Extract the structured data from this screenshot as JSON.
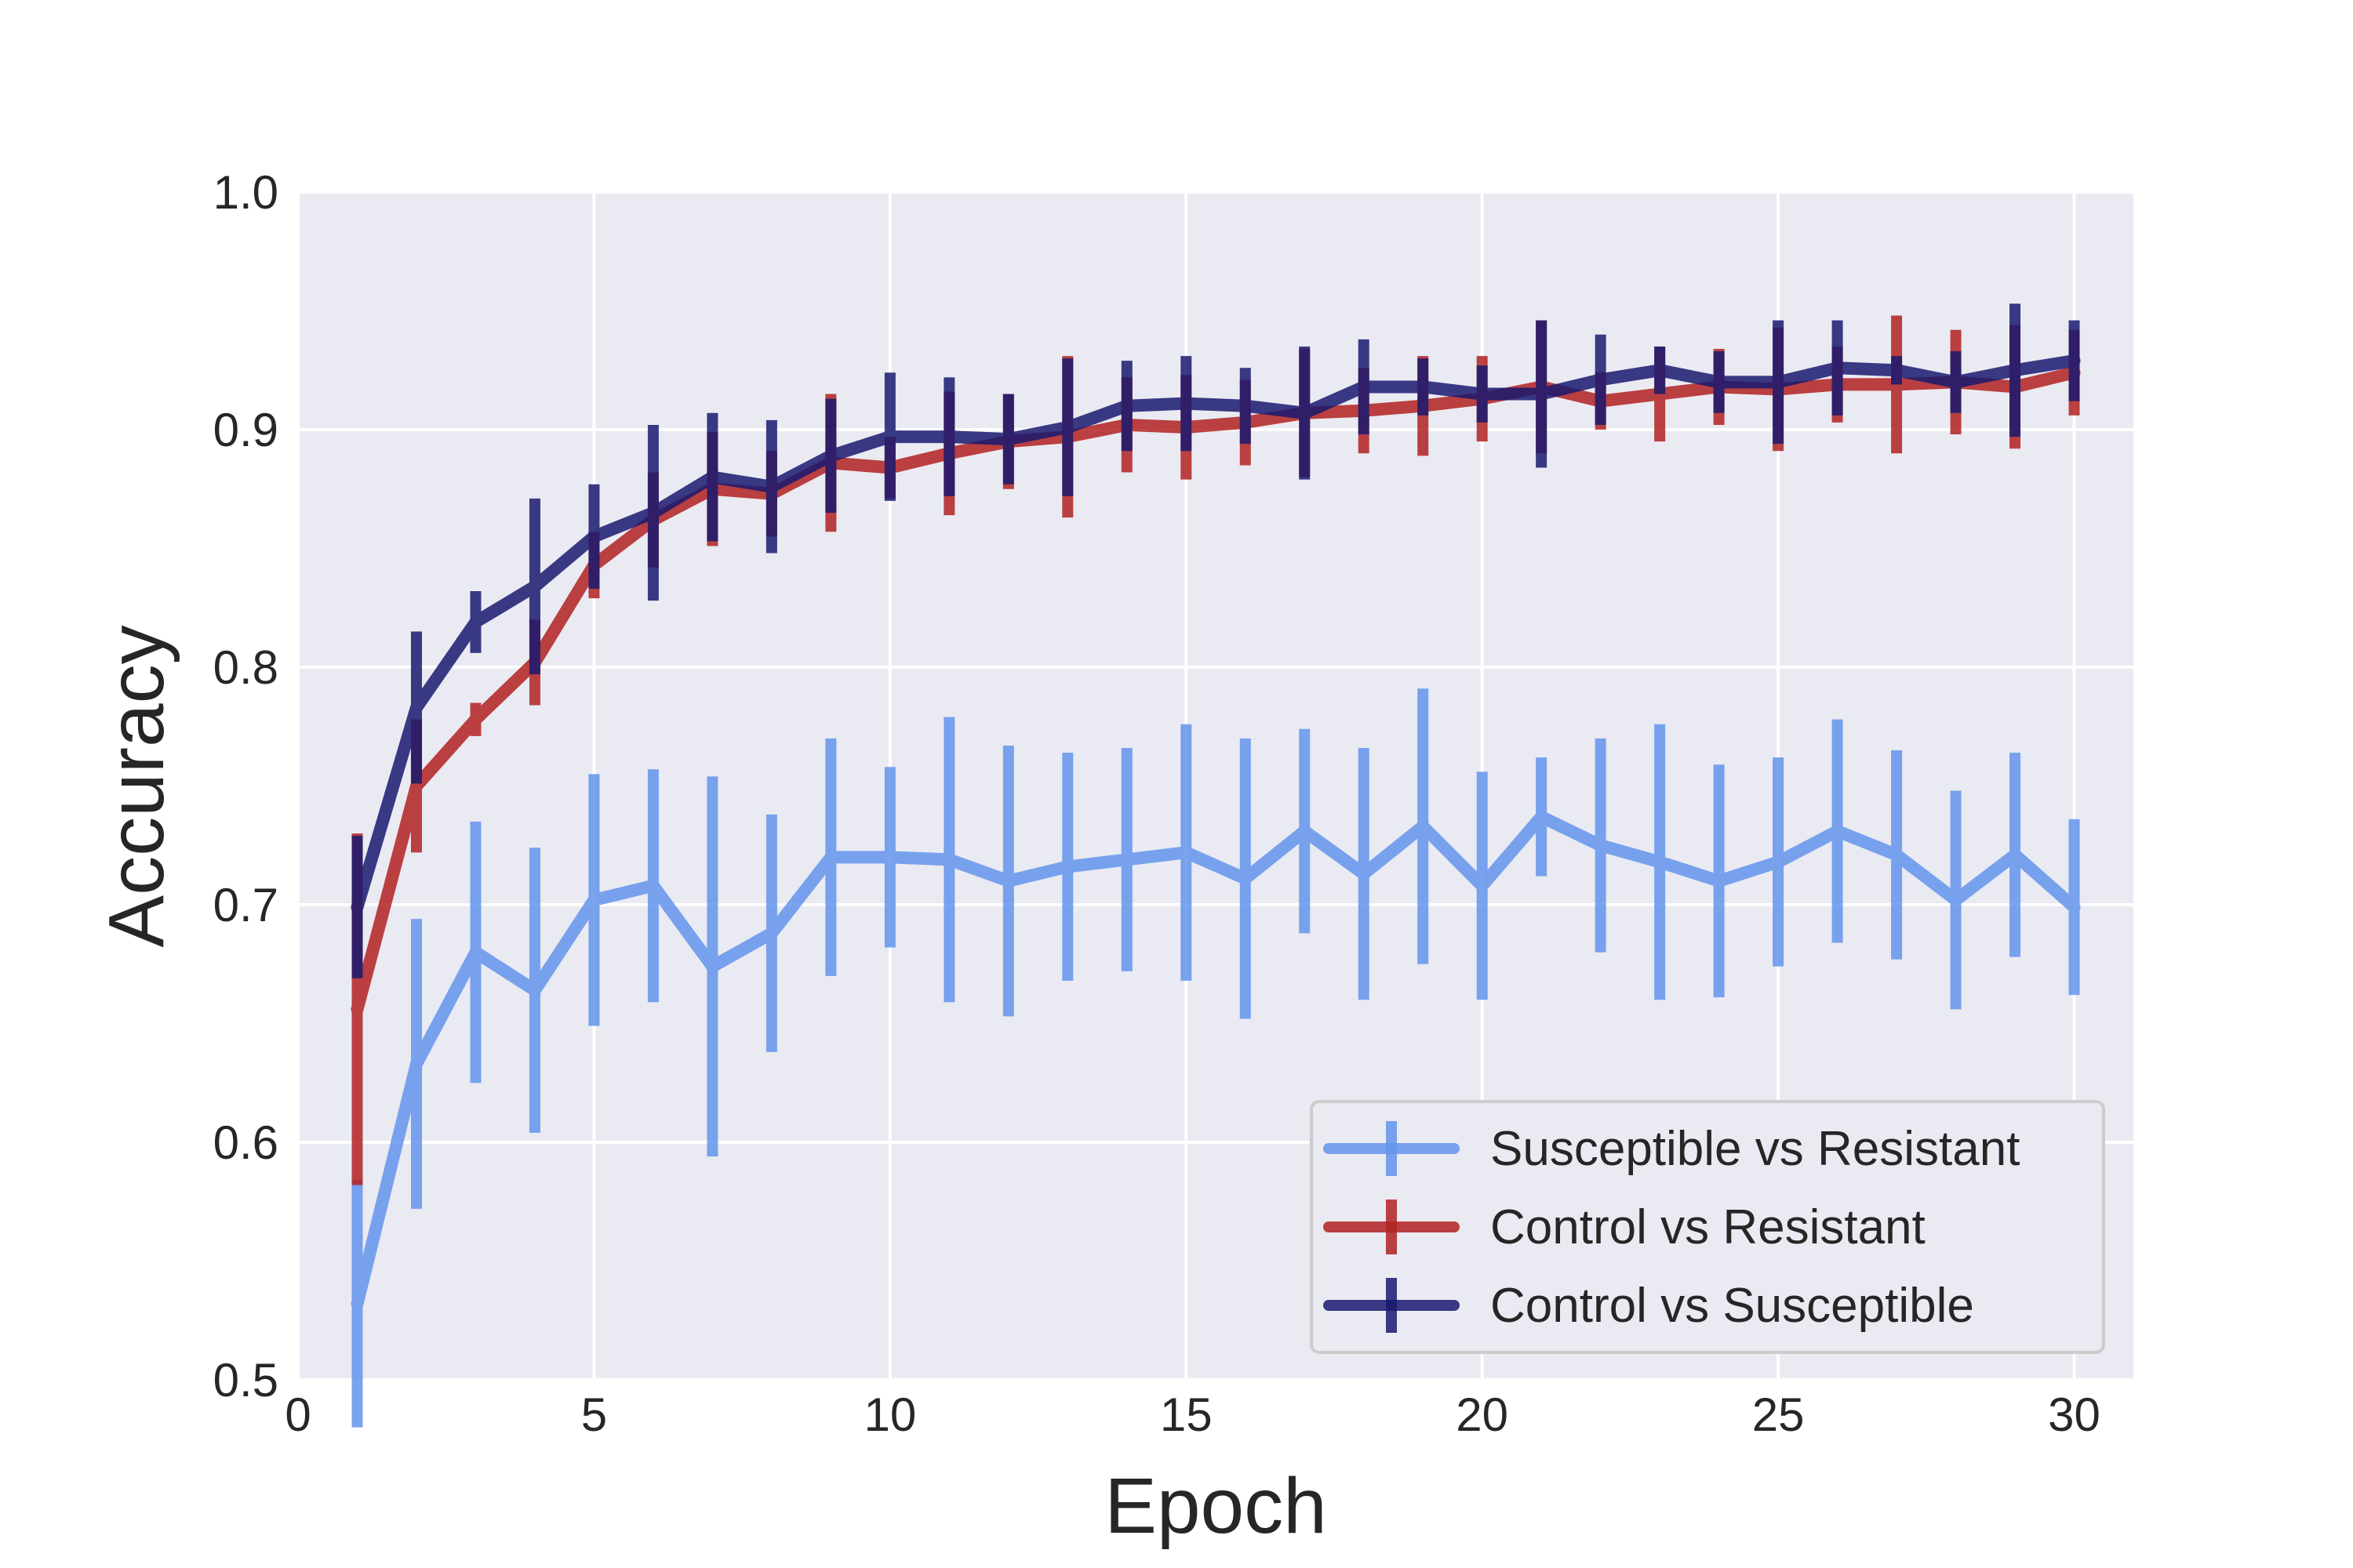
{
  "chart_data": {
    "type": "line",
    "xlabel": "Epoch",
    "ylabel": "Accuracy",
    "xlim": [
      0,
      31
    ],
    "ylim": [
      0.5,
      1.0
    ],
    "xticks": [
      0,
      5,
      10,
      15,
      20,
      25,
      30
    ],
    "yticks": [
      0.5,
      0.6,
      0.7,
      0.8,
      0.9,
      1.0
    ],
    "xtick_labels": [
      "0",
      "5",
      "10",
      "15",
      "20",
      "25",
      "30"
    ],
    "ytick_labels": [
      "0.5",
      "0.6",
      "0.7",
      "0.8",
      "0.9",
      "1.0"
    ],
    "grid": true,
    "legend_position": "lower-right",
    "x": [
      1,
      2,
      3,
      4,
      5,
      6,
      7,
      8,
      9,
      10,
      11,
      12,
      13,
      14,
      15,
      16,
      17,
      18,
      19,
      20,
      21,
      22,
      23,
      24,
      25,
      26,
      27,
      28,
      29,
      30
    ],
    "series": [
      {
        "name": "Susceptible vs Resistant",
        "color": "#6495ed",
        "values": [
          0.532,
          0.633,
          0.68,
          0.664,
          0.702,
          0.708,
          0.674,
          0.688,
          0.72,
          0.72,
          0.719,
          0.71,
          0.716,
          0.719,
          0.722,
          0.711,
          0.731,
          0.713,
          0.733,
          0.708,
          0.737,
          0.725,
          0.718,
          0.71,
          0.718,
          0.731,
          0.721,
          0.702,
          0.721,
          0.699
        ],
        "errors": [
          0.052,
          0.061,
          0.055,
          0.06,
          0.053,
          0.049,
          0.08,
          0.05,
          0.05,
          0.038,
          0.06,
          0.057,
          0.048,
          0.047,
          0.054,
          0.059,
          0.043,
          0.053,
          0.058,
          0.048,
          0.025,
          0.045,
          0.058,
          0.049,
          0.044,
          0.047,
          0.044,
          0.046,
          0.043,
          0.037
        ]
      },
      {
        "name": "Control vs Resistant",
        "color": "#b22222",
        "values": [
          0.656,
          0.75,
          0.778,
          0.802,
          0.843,
          0.862,
          0.875,
          0.873,
          0.886,
          0.884,
          0.89,
          0.895,
          0.897,
          0.902,
          0.901,
          0.903,
          0.907,
          0.908,
          0.91,
          0.913,
          0.918,
          0.912,
          0.915,
          0.918,
          0.917,
          0.919,
          0.919,
          0.92,
          0.918,
          0.924
        ],
        "errors": [
          0.074,
          0.028,
          0.007,
          0.018,
          0.014,
          0.02,
          0.024,
          0.018,
          0.029,
          0.013,
          0.026,
          0.02,
          0.034,
          0.02,
          0.022,
          0.018,
          0.027,
          0.018,
          0.021,
          0.018,
          0.028,
          0.012,
          0.02,
          0.016,
          0.026,
          0.016,
          0.029,
          0.022,
          0.026,
          0.018
        ]
      },
      {
        "name": "Control vs Susceptible",
        "color": "#191970",
        "values": [
          0.699,
          0.783,
          0.819,
          0.834,
          0.855,
          0.865,
          0.88,
          0.876,
          0.889,
          0.897,
          0.897,
          0.896,
          0.901,
          0.91,
          0.911,
          0.91,
          0.907,
          0.918,
          0.918,
          0.915,
          0.915,
          0.921,
          0.925,
          0.92,
          0.92,
          0.926,
          0.925,
          0.92,
          0.925,
          0.929
        ],
        "errors": [
          0.03,
          0.032,
          0.013,
          0.037,
          0.022,
          0.037,
          0.027,
          0.028,
          0.024,
          0.027,
          0.025,
          0.019,
          0.029,
          0.019,
          0.02,
          0.016,
          0.028,
          0.02,
          0.012,
          0.012,
          0.031,
          0.019,
          0.01,
          0.013,
          0.026,
          0.02,
          0.006,
          0.013,
          0.028,
          0.017
        ]
      }
    ]
  }
}
